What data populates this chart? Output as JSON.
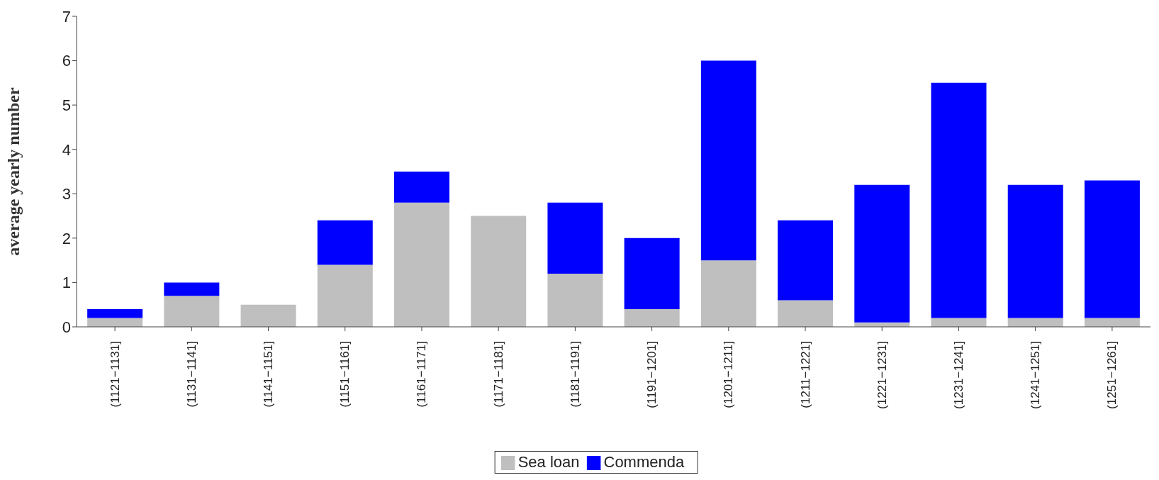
{
  "chart_data": {
    "type": "bar",
    "stacked": true,
    "ylabel": "average yearly number",
    "categories": [
      "(1121−1131]",
      "(1131−1141]",
      "(1141−1151]",
      "(1151−1161]",
      "(1161−1171]",
      "(1171−1181]",
      "(1181−1191]",
      "(1191−1201]",
      "(1201−1211]",
      "(1211−1221]",
      "(1221−1231]",
      "(1231−1241]",
      "(1241−1251]",
      "(1251−1261]"
    ],
    "series": [
      {
        "name": "Sea loan",
        "color": "#bfbfbf",
        "values": [
          0.2,
          0.7,
          0.5,
          1.4,
          2.8,
          2.5,
          1.2,
          0.4,
          1.5,
          0.6,
          0.1,
          0.2,
          0.2,
          0.2
        ]
      },
      {
        "name": "Commenda",
        "color": "#0000ff",
        "values": [
          0.2,
          0.3,
          null,
          1.0,
          0.7,
          null,
          1.6,
          1.6,
          4.5,
          1.8,
          3.1,
          5.3,
          3.0,
          3.1
        ]
      }
    ],
    "ylim": [
      0,
      7
    ],
    "yticks": [
      0,
      1,
      2,
      3,
      4,
      5,
      6,
      7
    ],
    "grid": false,
    "legend": "bottom"
  }
}
